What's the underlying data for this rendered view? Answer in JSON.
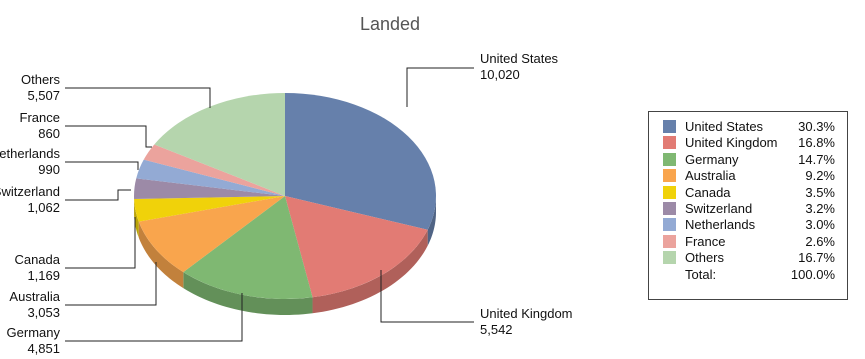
{
  "chart_data": {
    "type": "pie",
    "title": "",
    "subtitle": "Landed",
    "slices": [
      {
        "label": "United States",
        "value": 10020,
        "value_label": "10,020",
        "percent": "30.3%",
        "color": "#6680ab"
      },
      {
        "label": "United Kingdom",
        "value": 5542,
        "value_label": "5,542",
        "percent": "16.8%",
        "color": "#e27b74"
      },
      {
        "label": "Germany",
        "value": 4851,
        "value_label": "4,851",
        "percent": "14.7%",
        "color": "#7fb872"
      },
      {
        "label": "Australia",
        "value": 3053,
        "value_label": "3,053",
        "percent": "9.2%",
        "color": "#f9a54d"
      },
      {
        "label": "Canada",
        "value": 1169,
        "value_label": "1,169",
        "percent": "3.5%",
        "color": "#f0d20a"
      },
      {
        "label": "Switzerland",
        "value": 1062,
        "value_label": "1,062",
        "percent": "3.2%",
        "color": "#9c8aa7"
      },
      {
        "label": "Netherlands",
        "value": 990,
        "value_label": "990",
        "percent": "3.0%",
        "color": "#93aad4"
      },
      {
        "label": "France",
        "value": 860,
        "value_label": "860",
        "percent": "2.6%",
        "color": "#eba39d"
      },
      {
        "label": "Others",
        "value": 5507,
        "value_label": "5,507",
        "percent": "16.7%",
        "color": "#b5d5ad"
      }
    ],
    "total_label": "Total:",
    "total_percent": "100.0%",
    "legend_position": "right"
  }
}
